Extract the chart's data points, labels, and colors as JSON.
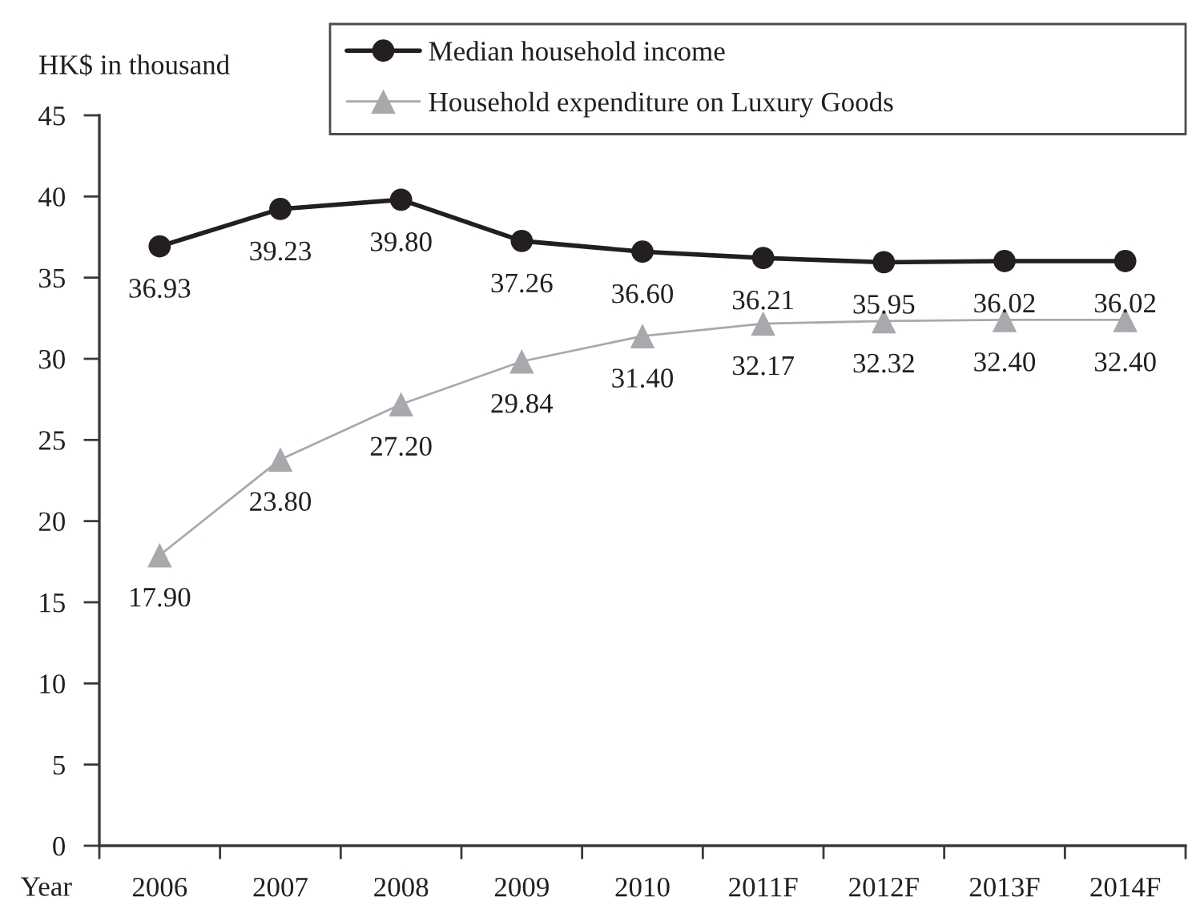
{
  "chart_data": {
    "type": "line",
    "xlabel": "Year",
    "ylabel": "HK$ in thousand",
    "categories": [
      "2006",
      "2007",
      "2008",
      "2009",
      "2010",
      "2011F",
      "2012F",
      "2013F",
      "2014F"
    ],
    "series": [
      {
        "name": "Median household income",
        "color": "#231f20",
        "marker": "circle",
        "values": [
          36.93,
          39.23,
          39.8,
          37.26,
          36.6,
          36.21,
          35.95,
          36.02,
          36.02
        ],
        "value_labels": [
          "36.93",
          "39.23",
          "39.80",
          "37.26",
          "36.60",
          "36.21",
          "35.95",
          "36.02",
          "36.02"
        ]
      },
      {
        "name": "Household expenditure on Luxury Goods",
        "color": "#a7a9ac",
        "marker": "triangle",
        "values": [
          17.9,
          23.8,
          27.2,
          29.84,
          31.4,
          32.17,
          32.32,
          32.4,
          32.4
        ],
        "value_labels": [
          "17.90",
          "23.80",
          "27.20",
          "29.84",
          "31.40",
          "32.17",
          "32.32",
          "32.40",
          "32.40"
        ]
      }
    ],
    "ylim": [
      0,
      45
    ],
    "yticks": [
      0,
      5,
      10,
      15,
      20,
      25,
      30,
      35,
      40,
      45
    ],
    "grid": false,
    "legend": "top right"
  }
}
